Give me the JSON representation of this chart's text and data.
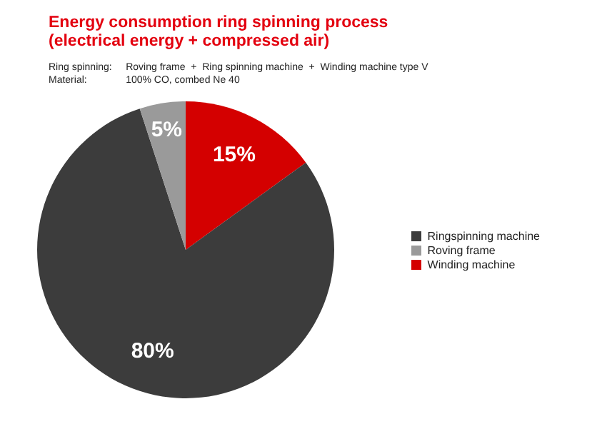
{
  "chart_data": {
    "type": "pie",
    "title": "Energy consumption ring spinning process\n(electrical energy + compressed air)",
    "annotations": [
      "Ring spinning:     Roving frame  +  Ring spinning machine  +  Winding machine type V",
      "Material:              100% CO, combed Ne 40"
    ],
    "categories": [
      "Winding machine",
      "Ringspinning machine",
      "Roving frame"
    ],
    "values": [
      15,
      80,
      5
    ],
    "colors": [
      "#d40000",
      "#3c3c3c",
      "#9a9a9a"
    ],
    "value_labels": [
      "15%",
      "80%",
      "5%"
    ],
    "legend": "right"
  }
}
